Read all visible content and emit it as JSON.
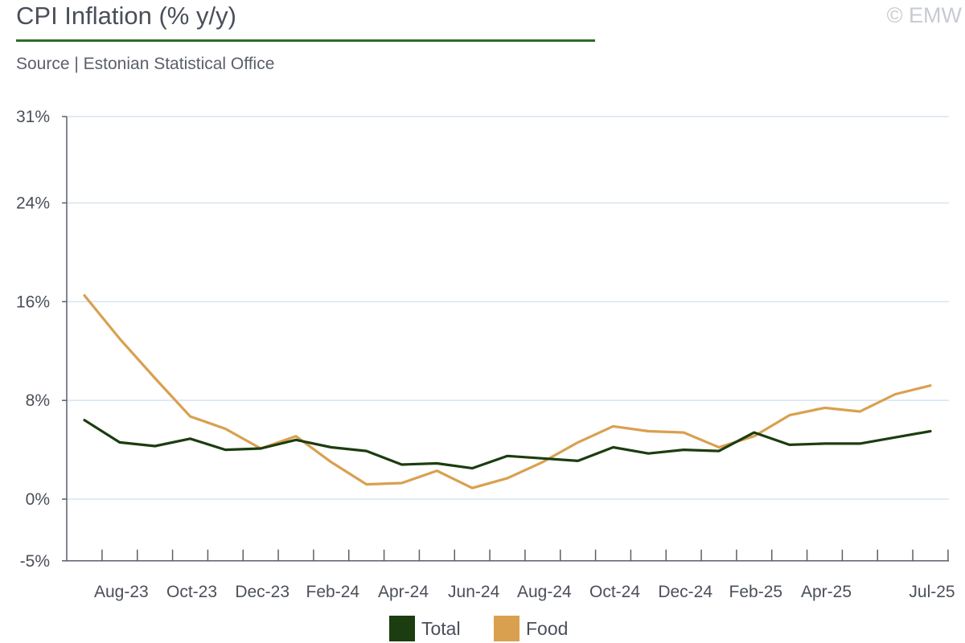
{
  "header": {
    "title": "CPI Inflation (% y/y)",
    "subtitle": "Source | Estonian Statistical Office",
    "copyright": "© EMW"
  },
  "colors": {
    "title_rule": "#2e6b2a",
    "grid": "#d6e4ef",
    "axis": "#5a5f6a",
    "total": "#1c3d0f",
    "food": "#d9a050"
  },
  "chart_data": {
    "type": "line",
    "x": [
      "Jul-23",
      "Aug-23",
      "Sep-23",
      "Oct-23",
      "Nov-23",
      "Dec-23",
      "Jan-24",
      "Feb-24",
      "Mar-24",
      "Apr-24",
      "May-24",
      "Jun-24",
      "Jul-24",
      "Aug-24",
      "Sep-24",
      "Oct-24",
      "Nov-24",
      "Dec-24",
      "Jan-25",
      "Feb-25",
      "Mar-25",
      "Apr-25",
      "May-25",
      "Jun-25",
      "Jul-25"
    ],
    "tick_labels": [
      "Aug-23",
      "Oct-23",
      "Dec-23",
      "Feb-24",
      "Apr-24",
      "Jun-24",
      "Aug-24",
      "Oct-24",
      "Dec-24",
      "Feb-25",
      "Apr-25",
      "Jul-25"
    ],
    "tick_indices": [
      1,
      3,
      5,
      7,
      9,
      11,
      13,
      15,
      17,
      19,
      21,
      24
    ],
    "y_ticks": [
      31,
      24,
      16,
      8,
      0,
      -5
    ],
    "y_tick_labels": [
      "31%",
      "24%",
      "16%",
      "8%",
      "0%",
      "-5%"
    ],
    "ylim": [
      -5,
      31
    ],
    "grid": true,
    "legend_position": "bottom-center",
    "series": [
      {
        "name": "Total",
        "values": [
          6.4,
          4.6,
          4.3,
          4.9,
          4.0,
          4.1,
          4.8,
          4.2,
          3.9,
          2.8,
          2.9,
          2.5,
          3.5,
          3.3,
          3.1,
          4.2,
          3.7,
          4.0,
          3.9,
          5.4,
          4.4,
          4.5,
          4.5,
          5.0,
          5.5
        ]
      },
      {
        "name": "Food",
        "values": [
          16.5,
          13.0,
          9.8,
          6.7,
          5.7,
          4.1,
          5.1,
          3.0,
          1.2,
          1.3,
          2.3,
          0.9,
          1.7,
          3.0,
          4.6,
          5.9,
          5.5,
          5.4,
          4.2,
          5.1,
          6.8,
          7.4,
          7.1,
          8.5,
          9.2
        ]
      }
    ]
  }
}
